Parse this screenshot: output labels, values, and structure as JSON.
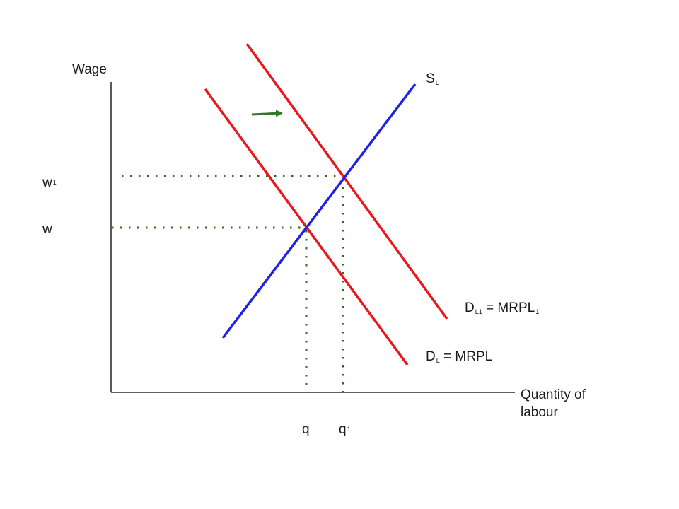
{
  "colors": {
    "axis": "#000000",
    "demand": "#e8191e",
    "supply": "#1f22e0",
    "guide": "#2f6b1f",
    "arrow": "#2f7a26",
    "text": "#1a1a1a"
  },
  "axes": {
    "y_label": "Wage",
    "x_label_line1": "Quantity of",
    "x_label_line2": "labour"
  },
  "curves": {
    "supply": {
      "main": "S",
      "sub": "L"
    },
    "demand_original": {
      "main": "D",
      "sub": "L",
      "rest": " = MRPL"
    },
    "demand_new": {
      "main": "D",
      "sub": "L1",
      "rest": " = MRPL",
      "rest_sub": "1"
    }
  },
  "ticks": {
    "w1": {
      "main": "w",
      "sub": "1"
    },
    "w": {
      "main": "w"
    },
    "q": {
      "main": "q"
    },
    "q1": {
      "main": "q",
      "sub": "1"
    }
  },
  "shift_direction": "right"
}
